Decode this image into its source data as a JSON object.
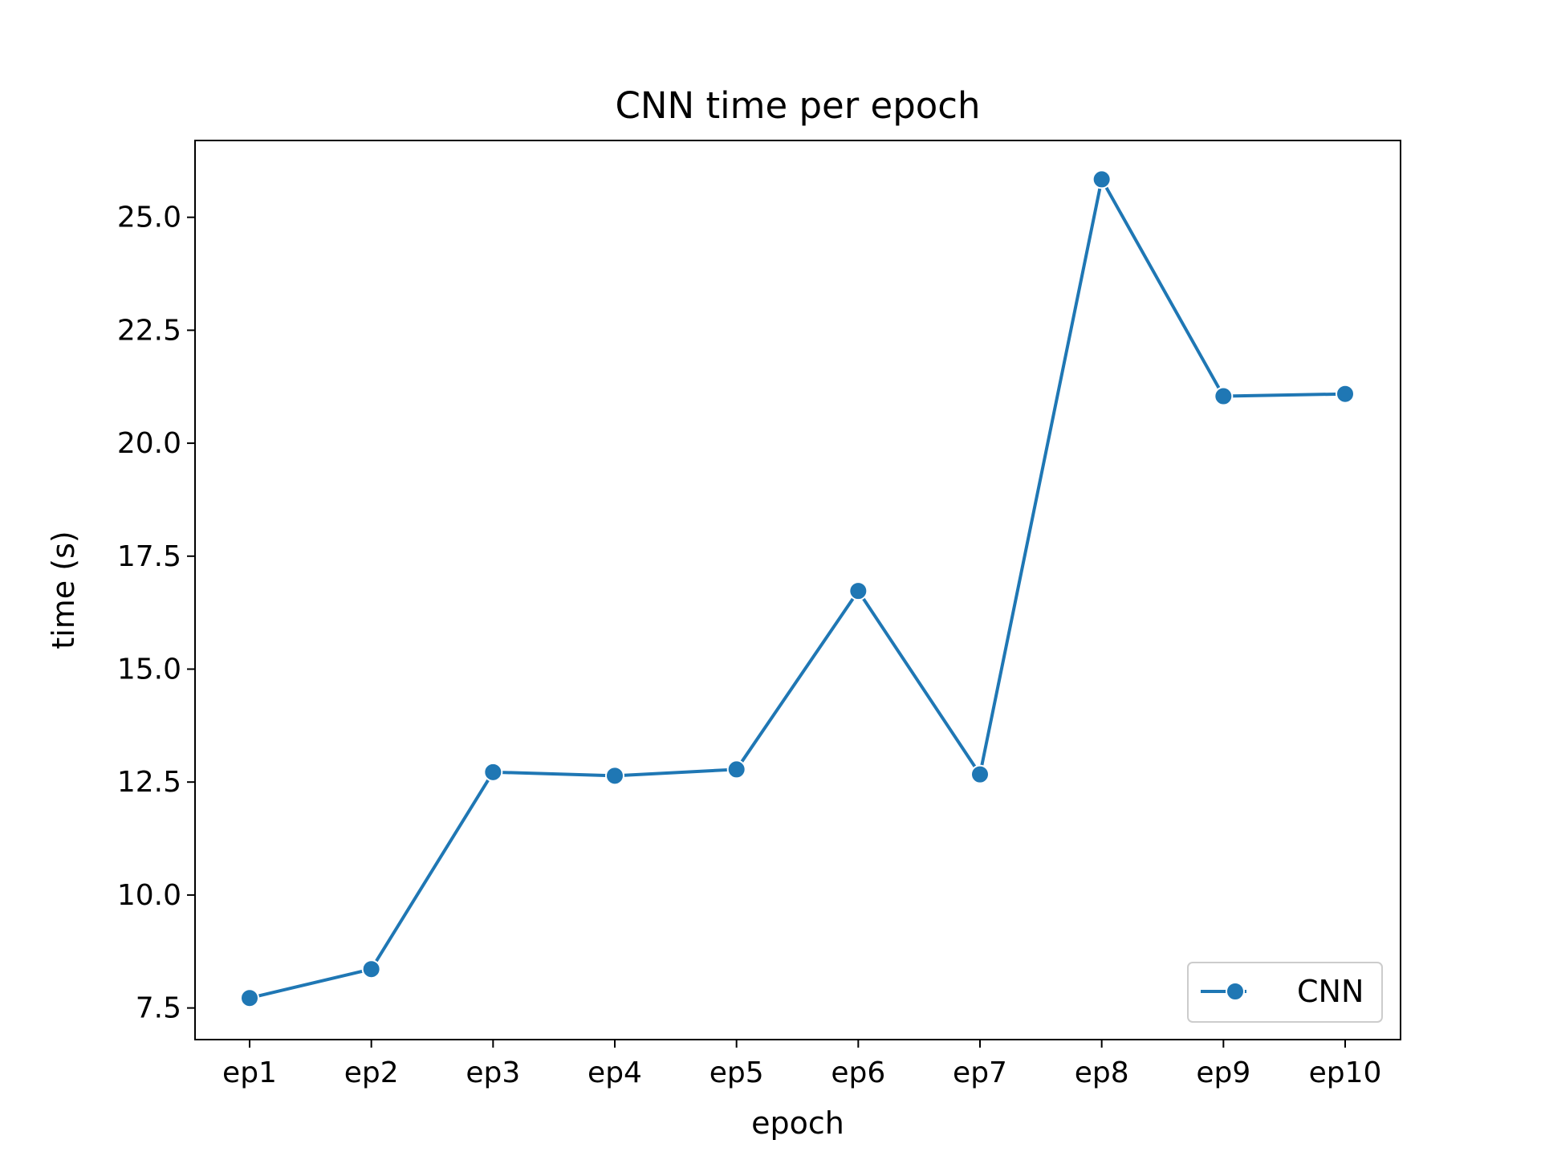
{
  "chart_data": {
    "type": "line",
    "title": "CNN time per epoch",
    "xlabel": "epoch",
    "ylabel": "time (s)",
    "categories": [
      "ep1",
      "ep2",
      "ep3",
      "ep4",
      "ep5",
      "ep6",
      "ep7",
      "ep8",
      "ep9",
      "ep10"
    ],
    "series": [
      {
        "name": "CNN",
        "color": "#1f77b4",
        "marker": "circle",
        "values": [
          7.72,
          8.36,
          12.72,
          12.64,
          12.78,
          16.73,
          12.67,
          25.84,
          21.04,
          21.09
        ]
      }
    ],
    "ylim": [
      6.8,
      26.7
    ],
    "yticks": [
      7.5,
      10.0,
      12.5,
      15.0,
      17.5,
      20.0,
      22.5,
      25.0
    ],
    "ytick_labels": [
      "7.5",
      "10.0",
      "12.5",
      "15.0",
      "17.5",
      "20.0",
      "22.5",
      "25.0"
    ],
    "grid": false,
    "legend": "lower-right"
  }
}
